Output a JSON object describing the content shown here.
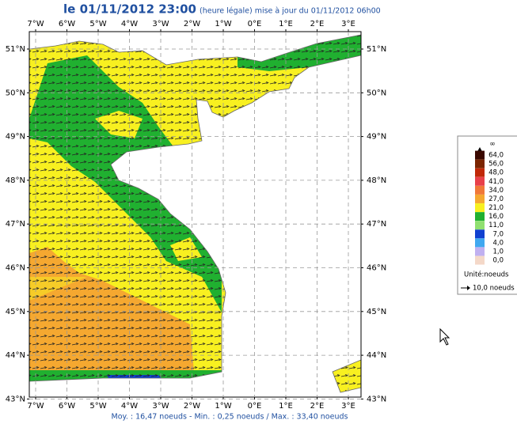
{
  "header": {
    "title": "le 01/11/2012 23:00",
    "subtitle": "(heure légale) mise à jour du 01/11/2012 06h00"
  },
  "map": {
    "lon_labels": [
      "7°W",
      "6°W",
      "5°W",
      "4°W",
      "3°W",
      "2°W",
      "1°W",
      "0°E",
      "1°E",
      "2°E",
      "3°E"
    ],
    "lat_labels": [
      "51°N",
      "50°N",
      "49°N",
      "48°N",
      "47°N",
      "46°N",
      "45°N",
      "44°N",
      "43°N"
    ]
  },
  "legend": {
    "items": [
      {
        "label": "∞",
        "color": "#000000"
      },
      {
        "label": "64,0",
        "color": "#3a0800"
      },
      {
        "label": "56,0",
        "color": "#7a2400"
      },
      {
        "label": "48,0",
        "color": "#c02808"
      },
      {
        "label": "41,0",
        "color": "#e8404a"
      },
      {
        "label": "34,0",
        "color": "#f07838"
      },
      {
        "label": "27,0",
        "color": "#f5a830"
      },
      {
        "label": "21,0",
        "color": "#f8f020"
      },
      {
        "label": "16,0",
        "color": "#20b030"
      },
      {
        "label": "11,0",
        "color": "#90e070"
      },
      {
        "label": "7,0",
        "color": "#1040d0"
      },
      {
        "label": "4,0",
        "color": "#40a8f0"
      },
      {
        "label": "1,0",
        "color": "#c0b0f0"
      },
      {
        "label": "0,0",
        "color": "#f4d8c8"
      }
    ],
    "unit": "Unité:noeuds",
    "scale": "10,0 noeuds"
  },
  "footer": {
    "stats": "Moy. : 16,47 noeuds  -  Min. : 0,25 noeuds / Max. : 33,40 noeuds"
  }
}
